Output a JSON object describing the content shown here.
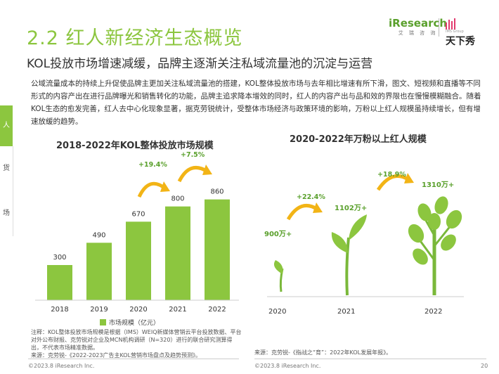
{
  "header": {
    "title": "2.2 红人新经济生态概览",
    "subtitle": "KOL投放市场增速减缓，品牌主逐渐关注私域流量池的沉淀与运营",
    "logo_iresearch": "iResearch",
    "logo_iresearch_cn": "艾 瑞 咨 询",
    "logo_tianxiaxiu": "天下秀",
    "logo_tianxiaxiu_group": "IMS Group"
  },
  "paragraph": "公域流量成本的持续上升促使品牌主更加关注私域流量池的搭建，KOL整体投放市场与去年相比增速有所下滑，图文、短视频和直播等不同形式的内容产出在进行品牌曝光和销售转化的功能，品牌主追求降本增效的同时，红人的内容产出与品和效的界限也在慢慢模糊融合。随着KOL生态的愈发完善，红人去中心化现象显著，据克劳锐统计，受整体市场经济与政策环境的影响，万粉以上红人规模虽持续增长，但有增速放缓的趋势。",
  "sidebar": {
    "items": [
      "人",
      "货",
      "场"
    ],
    "active": 0
  },
  "chart_data": [
    {
      "type": "bar",
      "title": "2018-2022年KOL整体投放市场规模",
      "categories": [
        "2018",
        "2019",
        "2020",
        "2021",
        "2022"
      ],
      "values": [
        300,
        490,
        670,
        800,
        860
      ],
      "legend": "市场规模（亿元）",
      "growth_labels": [
        {
          "from": "2020",
          "to": "2021",
          "label": "+19.4%"
        },
        {
          "from": "2021",
          "to": "2022",
          "label": "+7.5%"
        }
      ],
      "color": "#8cc63f"
    },
    {
      "type": "other",
      "title": "2020-2022年万粉以上红人规模",
      "categories": [
        "2020",
        "2021",
        "2022"
      ],
      "value_labels": [
        "900万+",
        "1102万+",
        "1310万+"
      ],
      "growth_labels": [
        "+22.4%",
        "+18.9%"
      ],
      "color": "#8cc63f"
    }
  ],
  "notes": {
    "left_note": "注释：KOL整体投放市场规模是根据（IMS）WEIQ新媒体营销云平台投放数据、平台对外公布财报、克劳锐对企业及MCN机构调研（N=320）进行的联合研究测算得出，不代表市场精准数据。",
    "left_source": "来源：克劳锐-《2022-2023广告主KOL营销市场盘点及趋势预测》。",
    "right_source": "来源：克劳锐-《指战之“育”：2022年KOL发展年报》。"
  },
  "footer": {
    "left": "©2023.8 iResearch Inc.",
    "middle": "©2023.8 iResearch Inc.",
    "page": "20"
  }
}
